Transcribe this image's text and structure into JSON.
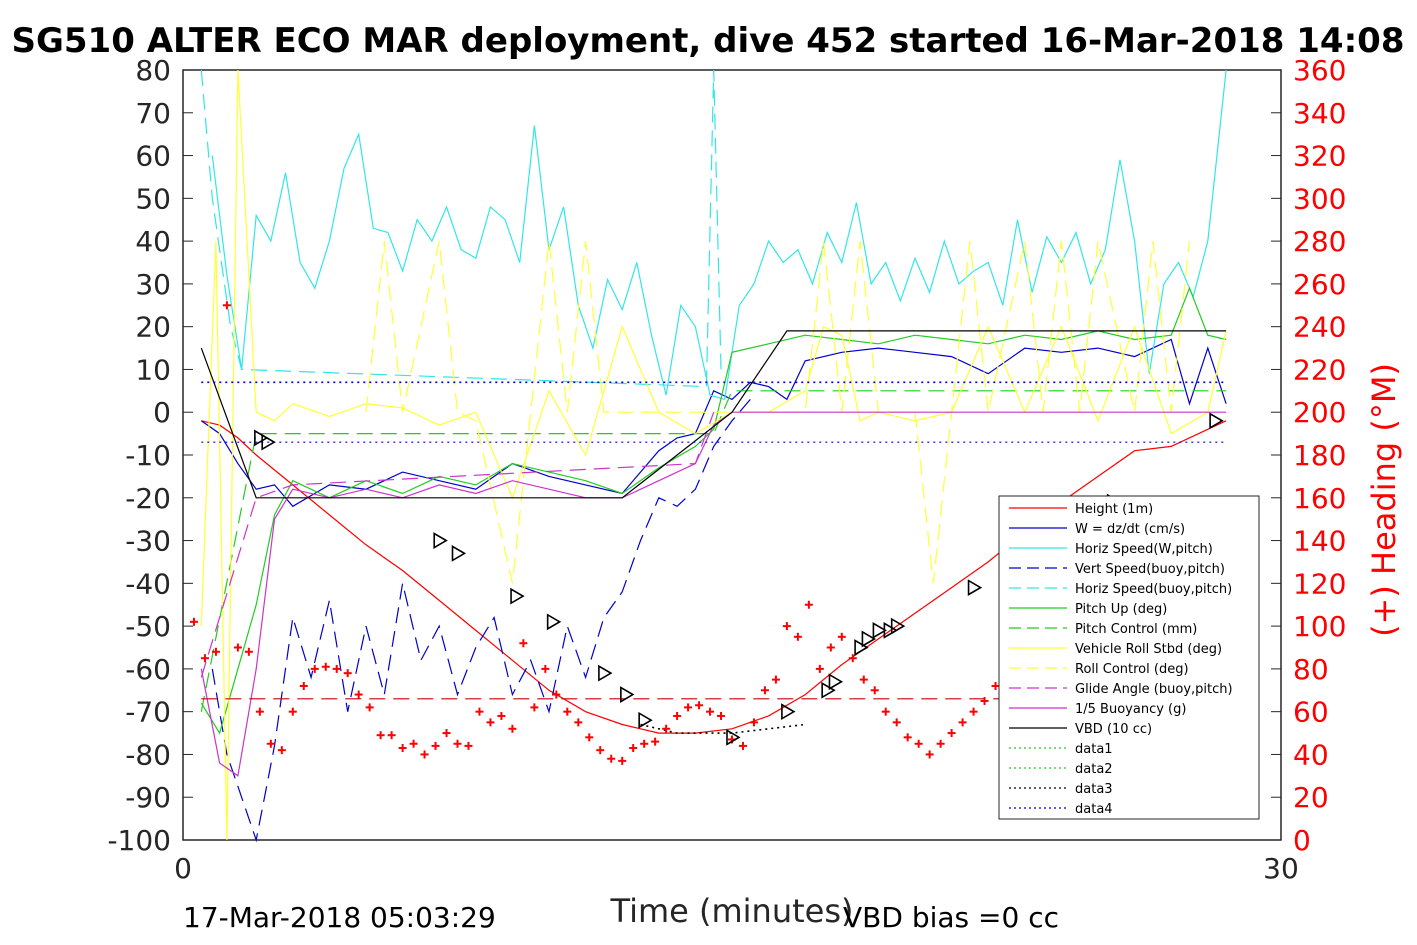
{
  "chart_data": {
    "type": "line",
    "title": "SG510 ALTER ECO MAR deployment, dive 452 started 16-Mar-2018 14:08",
    "xlabel": "Time (minutes)",
    "ylabel_right": "(+) Heading (°M)",
    "xlim": [
      0,
      30
    ],
    "ylim": [
      -100,
      80
    ],
    "ylim_right": [
      0,
      360
    ],
    "x_ticks": [
      "0",
      "30"
    ],
    "y_ticks": [
      "80",
      "70",
      "60",
      "50",
      "40",
      "30",
      "20",
      "10",
      "0",
      "-10",
      "-20",
      "-30",
      "-40",
      "-50",
      "-60",
      "-70",
      "-80",
      "-90",
      "-100"
    ],
    "y_ticks_right": [
      "360",
      "340",
      "320",
      "300",
      "280",
      "260",
      "240",
      "220",
      "200",
      "180",
      "160",
      "140",
      "120",
      "100",
      "80",
      "60",
      "40",
      "20",
      "0"
    ],
    "legend_position": "lower-right",
    "footer_left": "17-Mar-2018 05:03:29",
    "footer_right": "VBD bias =0 cc",
    "colors": {
      "red": "#ff0000",
      "blue": "#0000cc",
      "cyan": "#33e6e6",
      "green": "#22cc22",
      "yellow": "#ffff33",
      "magenta": "#cc33cc",
      "black": "#000000"
    },
    "series": [
      {
        "name": "Height (1m)",
        "color": "#ff0000",
        "style": "solid",
        "x": [
          0.5,
          1.0,
          1.5,
          2.0,
          3.0,
          4.0,
          5.0,
          6.0,
          7.0,
          8.0,
          9.0,
          10.0,
          11.0,
          12.0,
          13.0,
          14.0,
          15.0,
          16.0,
          17.0,
          18.0,
          19.0,
          20.0,
          21.0,
          22.0,
          23.0,
          24.0,
          25.0,
          26.0,
          27.0,
          28.0,
          28.5
        ],
        "y": [
          -2,
          -3,
          -6,
          -10,
          -17,
          -24,
          -31,
          -37,
          -44,
          -51,
          -58,
          -65,
          -70,
          -73,
          -75,
          -75,
          -74,
          -71,
          -66,
          -59,
          -53,
          -47,
          -41,
          -35,
          -28,
          -21,
          -15,
          -9,
          -8,
          -4,
          -2
        ]
      },
      {
        "name": "W = dz/dt (cm/s)",
        "color": "#0000cc",
        "style": "solid",
        "x": [
          0.5,
          1.0,
          1.5,
          2.0,
          2.5,
          3.0,
          4.0,
          5.0,
          6.0,
          7.0,
          8.0,
          9.0,
          10.0,
          11.0,
          12.0,
          12.5,
          13.0,
          13.5,
          14.0,
          14.5,
          15.0,
          15.5,
          16.0,
          16.5,
          17.0,
          18.0,
          19.0,
          20.0,
          21.0,
          22.0,
          23.0,
          24.0,
          25.0,
          26.0,
          27.0,
          27.5,
          28.0,
          28.5
        ],
        "y": [
          -2,
          -5,
          -12,
          -18,
          -17,
          -22,
          -17,
          -18,
          -14,
          -16,
          -18,
          -12,
          -15,
          -17,
          -19,
          -14,
          -9,
          -6,
          -5,
          5,
          3,
          7,
          6,
          3,
          12,
          14,
          15,
          14,
          13,
          9,
          15,
          14,
          15,
          13,
          17,
          2,
          15,
          2
        ]
      },
      {
        "name": "Horiz Speed(W,pitch)",
        "color": "#33e6e6",
        "style": "solid",
        "x": [
          0.8,
          1.2,
          1.6,
          2.0,
          2.4,
          2.8,
          3.2,
          3.6,
          4.0,
          4.4,
          4.8,
          5.2,
          5.6,
          6.0,
          6.4,
          6.8,
          7.2,
          7.6,
          8.0,
          8.4,
          8.8,
          9.2,
          9.6,
          10.0,
          10.4,
          10.8,
          11.2,
          11.6,
          12.0,
          12.4,
          12.8,
          13.2,
          13.6,
          14.0,
          14.4,
          14.8,
          15.2,
          15.6,
          16.0,
          16.4,
          16.8,
          17.2,
          17.6,
          18.0,
          18.4,
          18.8,
          19.2,
          19.6,
          20.0,
          20.4,
          20.8,
          21.2,
          21.6,
          22.0,
          22.4,
          22.8,
          23.2,
          23.6,
          24.0,
          24.4,
          24.8,
          25.2,
          25.6,
          26.0,
          26.4,
          26.8,
          27.2,
          27.6,
          28.0,
          28.5
        ],
        "y": [
          60,
          32,
          10,
          46,
          40,
          56,
          35,
          29,
          40,
          57,
          65,
          43,
          42,
          33,
          45,
          40,
          48,
          38,
          36,
          48,
          45,
          35,
          67,
          38,
          48,
          25,
          15,
          31,
          24,
          35,
          18,
          4,
          25,
          20,
          4,
          3,
          25,
          30,
          40,
          35,
          38,
          30,
          42,
          35,
          49,
          30,
          35,
          26,
          36,
          28,
          40,
          30,
          33,
          35,
          25,
          45,
          28,
          41,
          35,
          42,
          30,
          38,
          59,
          40,
          9,
          30,
          35,
          27,
          40,
          80
        ]
      },
      {
        "name": "Vert Speed(buoy,pitch)",
        "color": "#0000cc",
        "style": "dashed",
        "x": [
          0.8,
          1.2,
          1.6,
          2.0,
          2.5,
          3.0,
          3.5,
          4.0,
          4.5,
          5.0,
          5.5,
          6.0,
          6.5,
          7.0,
          7.5,
          8.0,
          8.5,
          9.0,
          9.5,
          10.0,
          10.5,
          11.0,
          11.5,
          12.0,
          12.5,
          13.0,
          13.5,
          14.0,
          14.5,
          15.0,
          15.5
        ],
        "y": [
          -60,
          -80,
          -90,
          -100,
          -78,
          -48,
          -62,
          -44,
          -70,
          -50,
          -66,
          -40,
          -58,
          -50,
          -66,
          -55,
          -48,
          -66,
          -58,
          -70,
          -50,
          -62,
          -48,
          -42,
          -30,
          -20,
          -22,
          -18,
          -8,
          -2,
          3
        ]
      },
      {
        "name": "Horiz Speed(buoy,pitch)",
        "color": "#33e6e6",
        "style": "dashed",
        "x": [
          0.5,
          0.8,
          1.0,
          1.3,
          1.6,
          14.3,
          14.5,
          14.7
        ],
        "y": [
          80,
          50,
          38,
          20,
          10,
          6,
          80,
          10
        ]
      },
      {
        "name": "Pitch Up (deg)",
        "color": "#22cc22",
        "style": "solid",
        "x": [
          0.5,
          1.0,
          1.5,
          2.0,
          2.5,
          3.0,
          4.0,
          5.0,
          6.0,
          7.0,
          8.0,
          9.0,
          10.0,
          11.0,
          12.0,
          13.0,
          14.0,
          14.5,
          15.0,
          16.0,
          17.0,
          18.0,
          19.0,
          20.0,
          21.0,
          22.0,
          23.0,
          24.0,
          25.0,
          26.0,
          27.0,
          27.5,
          28.0,
          28.5
        ],
        "y": [
          -68,
          -75,
          -60,
          -45,
          -24,
          -16,
          -20,
          -16,
          -19,
          -15,
          -17,
          -12,
          -14,
          -16,
          -19,
          -13,
          -8,
          -4,
          14,
          16,
          18,
          17,
          16,
          18,
          17,
          16,
          18,
          17,
          19,
          17,
          18,
          29,
          18,
          17
        ]
      },
      {
        "name": "Pitch Control (mm)",
        "color": "#22cc22",
        "style": "dashed",
        "x": [
          0.5,
          2.0,
          5.0,
          10.0,
          14.5,
          15.0,
          17.0,
          20.0,
          25.0,
          28.5
        ],
        "y": [
          -70,
          -5,
          -5,
          -5,
          -5,
          5,
          5,
          5,
          5,
          5
        ]
      },
      {
        "name": "Vehicle Roll Stbd (deg)",
        "color": "#ffff33",
        "style": "solid",
        "x": [
          0.5,
          0.9,
          1.2,
          1.5,
          2.0,
          2.5,
          3.0,
          4.0,
          5.0,
          6.0,
          7.0,
          8.0,
          9.0,
          10.0,
          11.0,
          12.0,
          13.0,
          14.0,
          15.0,
          16.0,
          17.0,
          17.5,
          18.0,
          18.5,
          19.0,
          20.0,
          21.0,
          22.0,
          23.0,
          24.0,
          25.0,
          26.0,
          27.0,
          28.0,
          28.5
        ],
        "y": [
          -50,
          40,
          -100,
          80,
          0,
          -2,
          2,
          -1,
          2,
          1,
          -3,
          0,
          -20,
          5,
          -10,
          20,
          0,
          -5,
          0,
          0,
          5,
          20,
          18,
          -2,
          0,
          -2,
          0,
          20,
          0,
          20,
          -2,
          20,
          -5,
          0,
          19
        ]
      },
      {
        "name": "Roll Control (deg)",
        "color": "#ffff33",
        "style": "dashed",
        "x": [
          5.0,
          5.5,
          6.0,
          7.0,
          7.5,
          8.0,
          9.0,
          9.5,
          10.0,
          10.5,
          11.0,
          11.5,
          12.0,
          17.0,
          17.5,
          18.0,
          18.5,
          19.0,
          20.0,
          20.5,
          21.0,
          21.5,
          22.0,
          23.0,
          23.5,
          24.0,
          24.5,
          25.0,
          26.0,
          26.5,
          27.0,
          27.5
        ],
        "y": [
          0,
          40,
          0,
          40,
          0,
          -2,
          -40,
          0,
          40,
          0,
          40,
          0,
          0,
          0,
          40,
          0,
          40,
          0,
          0,
          -40,
          0,
          40,
          0,
          40,
          0,
          40,
          0,
          40,
          0,
          40,
          0,
          40
        ]
      },
      {
        "name": "Glide Angle (buoy,pitch)",
        "color": "#cc33cc",
        "style": "dashed",
        "x": [
          0.5,
          2.0,
          3.0,
          14.0,
          14.5
        ],
        "y": [
          -62,
          -20,
          -17,
          -12,
          0
        ]
      },
      {
        "name": "1/5 Buoyancy (g)",
        "color": "#cc33cc",
        "style": "solid",
        "x": [
          0.5,
          1.0,
          1.5,
          2.0,
          2.5,
          3.0,
          4.0,
          5.0,
          6.0,
          7.0,
          8.0,
          9.0,
          10.0,
          11.0,
          12.0,
          13.0,
          14.0,
          14.5,
          15.0,
          28.5
        ],
        "y": [
          -60,
          -82,
          -85,
          -60,
          -25,
          -18,
          -20,
          -18,
          -20,
          -17,
          -19,
          -16,
          -18,
          -20,
          -20,
          -16,
          -12,
          -3,
          0,
          0
        ]
      },
      {
        "name": "VBD (10 cc)",
        "color": "#000000",
        "style": "solid",
        "x": [
          0.5,
          2.0,
          8.0,
          12.0,
          13.5,
          15.0,
          16.5,
          17.0,
          20.0,
          23.0,
          26.0,
          28.5
        ],
        "y": [
          15,
          -20,
          -20,
          -20,
          -10,
          0,
          19,
          19,
          19,
          19,
          19,
          19
        ]
      },
      {
        "name": "data1",
        "color": "#22cc22",
        "style": "dotted",
        "x": [],
        "y": []
      },
      {
        "name": "data2",
        "color": "#22cc22",
        "style": "dotted",
        "x": [],
        "y": []
      },
      {
        "name": "data3",
        "color": "#000000",
        "style": "dotted",
        "x": [
          12.5,
          13.0,
          13.5,
          14.0,
          14.5,
          15.0,
          16.0,
          17.0
        ],
        "y": [
          -73,
          -74,
          -75,
          -75,
          -75,
          -75,
          -74,
          -73
        ]
      },
      {
        "name": "data4",
        "color": "#0000cc",
        "style": "dotted",
        "x": [
          0.5,
          28.5
        ],
        "y": [
          7,
          7
        ]
      }
    ],
    "extra_lines": [
      {
        "color": "#0000cc",
        "style": "dotted",
        "x": [
          0.5,
          28.5
        ],
        "y": [
          -7,
          -7
        ]
      },
      {
        "color": "#cc0000",
        "style": "dashed",
        "x": [
          0.5,
          28.5
        ],
        "y": [
          -67,
          -67
        ]
      }
    ],
    "heading_points": {
      "color": "#ff0000",
      "x": [
        0.3,
        0.6,
        0.9,
        1.2,
        1.5,
        1.8,
        2.1,
        2.4,
        2.7,
        3.0,
        3.3,
        3.6,
        3.9,
        4.2,
        4.5,
        4.8,
        5.1,
        5.4,
        5.7,
        6.0,
        6.3,
        6.6,
        6.9,
        7.2,
        7.5,
        7.8,
        8.1,
        8.4,
        8.7,
        9.0,
        9.3,
        9.6,
        9.9,
        10.2,
        10.5,
        10.8,
        11.1,
        11.4,
        11.7,
        12.0,
        12.3,
        12.6,
        12.9,
        13.2,
        13.5,
        13.8,
        14.1,
        14.4,
        14.7,
        15.0,
        15.3,
        15.6,
        15.9,
        16.2,
        16.5,
        16.8,
        17.1,
        17.4,
        17.7,
        18.0,
        18.3,
        18.6,
        18.9,
        19.2,
        19.5,
        19.8,
        20.1,
        20.4,
        20.7,
        21.0,
        21.3,
        21.6,
        21.9,
        22.2,
        22.5,
        22.8,
        23.1,
        23.4,
        23.7,
        24.0,
        24.3,
        24.6,
        24.9,
        25.2,
        25.5,
        25.8,
        26.1,
        26.4,
        26.7,
        27.0,
        27.3,
        27.6,
        27.9,
        28.2,
        28.5
      ],
      "heading": [
        102,
        85,
        88,
        250,
        90,
        88,
        60,
        45,
        42,
        60,
        72,
        80,
        81,
        80,
        78,
        68,
        62,
        49,
        49,
        43,
        45,
        40,
        44,
        50,
        45,
        44,
        60,
        55,
        58,
        52,
        92,
        62,
        80,
        68,
        60,
        55,
        48,
        42,
        38,
        37,
        43,
        45,
        46,
        52,
        58,
        62,
        63,
        60,
        58,
        47,
        44,
        55,
        70,
        75,
        100,
        95,
        110,
        80,
        90,
        95,
        85,
        75,
        70,
        60,
        55,
        48,
        45,
        40,
        45,
        50,
        55,
        60,
        65,
        72,
        76,
        70,
        65,
        60,
        58,
        68,
        70,
        66,
        62,
        70,
        68,
        67,
        60,
        62,
        60,
        58,
        40,
        22,
        25,
        28,
        40
      ]
    },
    "markers": {
      "type": "triangle",
      "color": "#000000",
      "x": [
        2.1,
        2.3,
        7.0,
        7.5,
        9.1,
        10.1,
        11.5,
        12.1,
        12.6,
        15.0,
        16.5,
        17.6,
        17.8,
        18.5,
        18.7,
        19.0,
        19.3,
        19.5,
        21.6,
        22.5,
        22.7,
        25.1,
        25.4,
        28.2
      ],
      "y": [
        -6,
        -7,
        -30,
        -33,
        -43,
        -49,
        -61,
        -66,
        -72,
        -76,
        -70,
        -65,
        -63,
        -55,
        -53,
        -51,
        -51,
        -50,
        -41,
        -36,
        -34,
        -24,
        -21,
        -2
      ]
    }
  }
}
